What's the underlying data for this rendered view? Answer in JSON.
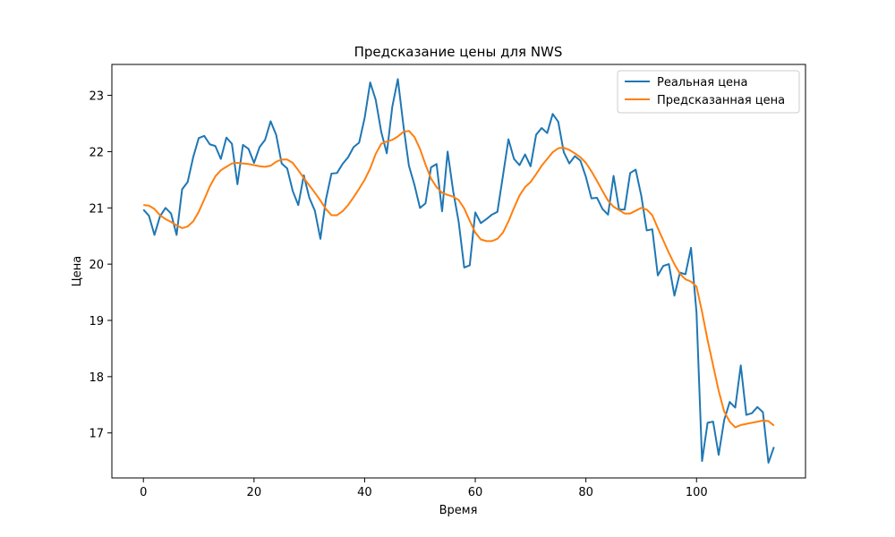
{
  "chart_data": {
    "type": "line",
    "title": "Предсказание цены для NWS",
    "xlabel": "Время",
    "ylabel": "Цена",
    "xlim": [
      -5.7,
      119.7
    ],
    "ylim": [
      16.2,
      23.55
    ],
    "xticks": [
      0,
      20,
      40,
      60,
      80,
      100
    ],
    "yticks": [
      17,
      18,
      19,
      20,
      21,
      22,
      23
    ],
    "grid": false,
    "legend_position": "top-right",
    "series": [
      {
        "name": "Реальная цена",
        "color": "#1f77b4",
        "values": [
          20.97,
          20.86,
          20.52,
          20.85,
          21.0,
          20.9,
          20.52,
          21.33,
          21.46,
          21.9,
          22.24,
          22.28,
          22.13,
          22.1,
          21.87,
          22.25,
          22.14,
          21.42,
          22.12,
          22.05,
          21.8,
          22.08,
          22.21,
          22.54,
          22.3,
          21.79,
          21.7,
          21.3,
          21.05,
          21.58,
          21.18,
          20.95,
          20.45,
          21.15,
          21.61,
          21.62,
          21.78,
          21.9,
          22.08,
          22.16,
          22.6,
          23.23,
          22.92,
          22.35,
          21.97,
          22.8,
          23.29,
          22.47,
          21.75,
          21.41,
          21.0,
          21.08,
          21.72,
          21.78,
          20.94,
          22.0,
          21.3,
          20.75,
          19.94,
          19.98,
          20.92,
          20.73,
          20.8,
          20.88,
          20.93,
          21.57,
          22.22,
          21.87,
          21.76,
          21.95,
          21.74,
          22.3,
          22.42,
          22.33,
          22.67,
          22.53,
          21.99,
          21.79,
          21.92,
          21.84,
          21.55,
          21.17,
          21.18,
          20.98,
          20.88,
          21.57,
          20.97,
          20.97,
          21.62,
          21.68,
          21.22,
          20.6,
          20.62,
          19.8,
          19.97,
          20.0,
          19.44,
          19.85,
          19.82,
          20.29,
          19.13,
          16.5,
          17.18,
          17.2,
          16.61,
          17.23,
          17.55,
          17.45,
          18.2,
          17.32,
          17.35,
          17.46,
          17.37,
          16.47,
          16.75
        ]
      },
      {
        "name": "Предсказанная цена",
        "color": "#ff7f0e",
        "values": [
          21.05,
          21.04,
          20.98,
          20.87,
          20.8,
          20.75,
          20.69,
          20.64,
          20.67,
          20.76,
          20.93,
          21.15,
          21.38,
          21.56,
          21.67,
          21.73,
          21.79,
          21.8,
          21.79,
          21.78,
          21.76,
          21.74,
          21.73,
          21.75,
          21.82,
          21.86,
          21.86,
          21.8,
          21.67,
          21.53,
          21.4,
          21.27,
          21.13,
          20.98,
          20.87,
          20.87,
          20.94,
          21.05,
          21.19,
          21.34,
          21.5,
          21.7,
          21.96,
          22.14,
          22.18,
          22.21,
          22.27,
          22.35,
          22.37,
          22.26,
          22.05,
          21.77,
          21.52,
          21.37,
          21.27,
          21.23,
          21.2,
          21.14,
          20.99,
          20.77,
          20.56,
          20.44,
          20.41,
          20.41,
          20.45,
          20.56,
          20.76,
          21.0,
          21.22,
          21.37,
          21.46,
          21.6,
          21.75,
          21.87,
          21.99,
          22.06,
          22.07,
          22.03,
          21.97,
          21.9,
          21.8,
          21.65,
          21.48,
          21.3,
          21.13,
          21.02,
          20.96,
          20.9,
          20.9,
          20.95,
          21.0,
          20.97,
          20.87,
          20.64,
          20.42,
          20.2,
          20.0,
          19.83,
          19.73,
          19.69,
          19.6,
          19.15,
          18.65,
          18.2,
          17.75,
          17.38,
          17.2,
          17.1,
          17.14,
          17.16,
          17.18,
          17.2,
          17.22,
          17.21,
          17.13
        ]
      }
    ]
  }
}
